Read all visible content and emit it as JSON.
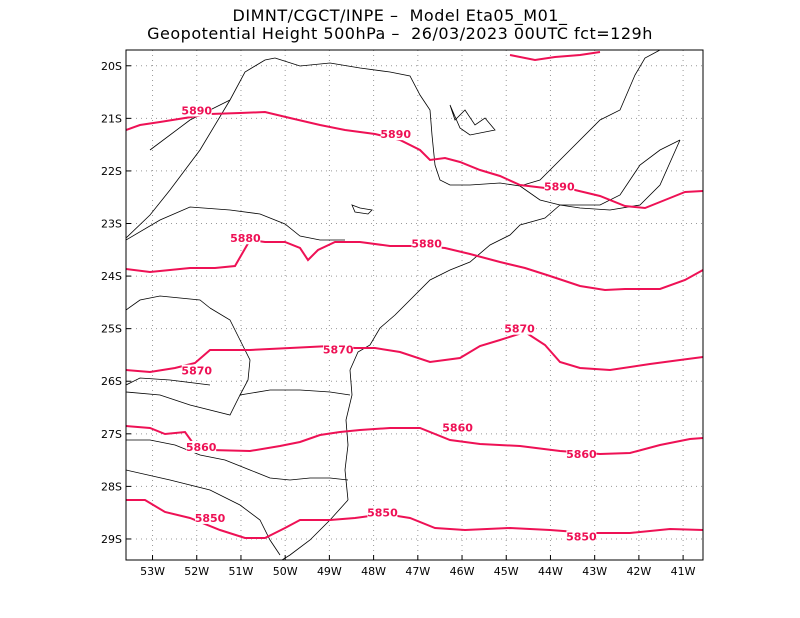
{
  "title_line1": "DIMNT/CGCT/INPE –  Model Eta05_M01_",
  "title_line2": "Geopotential Height 500hPa –  26/03/2023 00UTC fct=129h",
  "colors": {
    "contour": "#ee1155",
    "coast": "#000000",
    "grid": "#999999"
  },
  "axes": {
    "x_ticks": [
      "53W",
      "52W",
      "51W",
      "50W",
      "49W",
      "48W",
      "47W",
      "46W",
      "45W",
      "44W",
      "43W",
      "42W",
      "41W"
    ],
    "y_ticks": [
      "20S",
      "21S",
      "22S",
      "23S",
      "24S",
      "25S",
      "26S",
      "27S",
      "28S",
      "29S"
    ],
    "lon_range": [
      -53.6,
      -40.55
    ],
    "lat_range": [
      -29.4,
      -19.7
    ],
    "grid": "dotted"
  },
  "contours": [
    {
      "value": "5890",
      "labels": [
        [
          -52.0,
          -20.85
        ],
        [
          -47.5,
          -21.3
        ],
        [
          -43.8,
          -22.3
        ]
      ]
    },
    {
      "value": "5880",
      "labels": [
        [
          -50.9,
          -23.28
        ],
        [
          -46.8,
          -23.38
        ]
      ]
    },
    {
      "value": "5870",
      "labels": [
        [
          -48.8,
          -25.4
        ],
        [
          -44.7,
          -25.0
        ],
        [
          -52.0,
          -25.8
        ]
      ]
    },
    {
      "value": "5860",
      "labels": [
        [
          -51.9,
          -27.25
        ],
        [
          -46.1,
          -26.88
        ],
        [
          -43.3,
          -27.38
        ]
      ]
    },
    {
      "value": "5850",
      "labels": [
        [
          -51.7,
          -28.6
        ],
        [
          -47.8,
          -28.5
        ],
        [
          -43.3,
          -28.95
        ]
      ]
    }
  ]
}
